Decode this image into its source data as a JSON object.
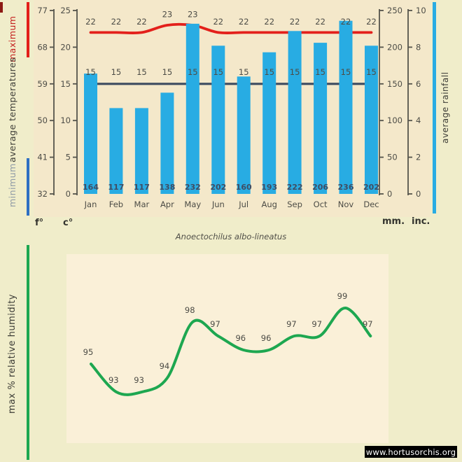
{
  "title": "Anoectochilus albo-lineatus",
  "watermark": "www.hortusorchis.org",
  "temperature_panel": {
    "label_maximum": "maximum",
    "label_average": "average temperatures",
    "label_minimum": "minimum",
    "label_rainfall": "average rainfall",
    "unit_fahrenheit": "f°",
    "unit_celsius": "c°",
    "unit_mm": "mm.",
    "unit_inches": "inc."
  },
  "humidity_panel": {
    "label": "max % relative humidity"
  },
  "colors": {
    "background": "#f0edca",
    "panel_top": "#f4e8ca",
    "panel_bottom": "#faf0d8",
    "bar_blue": "#28ace3",
    "max_red": "#e3201b",
    "min_navy": "#3d4b60",
    "min_key_blue": "#2e6fc2",
    "humidity_green": "#1da750",
    "axis_gray": "#55544c",
    "text_dark": "#4c4c46",
    "bar_label_navy": "#3f4d63",
    "minimum_text": "#8f9aa6",
    "maximum_text": "#c4201e",
    "badge_bg": "#000000",
    "badge_text": "#ffffff"
  },
  "chart_data": [
    {
      "type": "bar",
      "title": "monthly average rainfall with minimum and maximum temperatures",
      "categories": [
        "Jan",
        "Feb",
        "Mar",
        "Apr",
        "May",
        "Jun",
        "Jul",
        "Aug",
        "Sep",
        "Oct",
        "Nov",
        "Dec"
      ],
      "series": [
        {
          "name": "average rainfall",
          "type": "bar",
          "unit": "mm",
          "values": [
            164,
            117,
            117,
            138,
            232,
            202,
            160,
            193,
            222,
            206,
            236,
            202
          ]
        },
        {
          "name": "maximum temperature",
          "type": "line",
          "unit": "°C",
          "values": [
            22,
            22,
            22,
            23,
            23,
            22,
            22,
            22,
            22,
            22,
            22,
            22
          ]
        },
        {
          "name": "minimum temperature",
          "type": "line",
          "unit": "°C",
          "values": [
            15,
            15,
            15,
            15,
            15,
            15,
            15,
            15,
            15,
            15,
            15,
            15
          ]
        }
      ],
      "axes": {
        "fahrenheit_ticks": [
          77,
          68,
          59,
          50,
          41,
          32
        ],
        "celsius_ticks": [
          25,
          20,
          15,
          10,
          5,
          0
        ],
        "mm_ticks": [
          250,
          200,
          150,
          100,
          50,
          0
        ],
        "inch_ticks": [
          10,
          8,
          6,
          4,
          2,
          0
        ],
        "celsius_range": [
          0,
          25
        ],
        "mm_range": [
          0,
          250
        ],
        "grid": false
      }
    },
    {
      "type": "line",
      "title": "Anoectochilus albo-lineatus",
      "ylabel": "max % relative humidity",
      "categories": [
        "Jan",
        "Feb",
        "Mar",
        "Apr",
        "May",
        "Jun",
        "Jul",
        "Aug",
        "Sep",
        "Oct",
        "Nov",
        "Dec"
      ],
      "values": [
        95,
        93,
        93,
        94,
        98,
        97,
        96,
        96,
        97,
        97,
        99,
        97
      ],
      "ylim": [
        90,
        100
      ]
    }
  ]
}
